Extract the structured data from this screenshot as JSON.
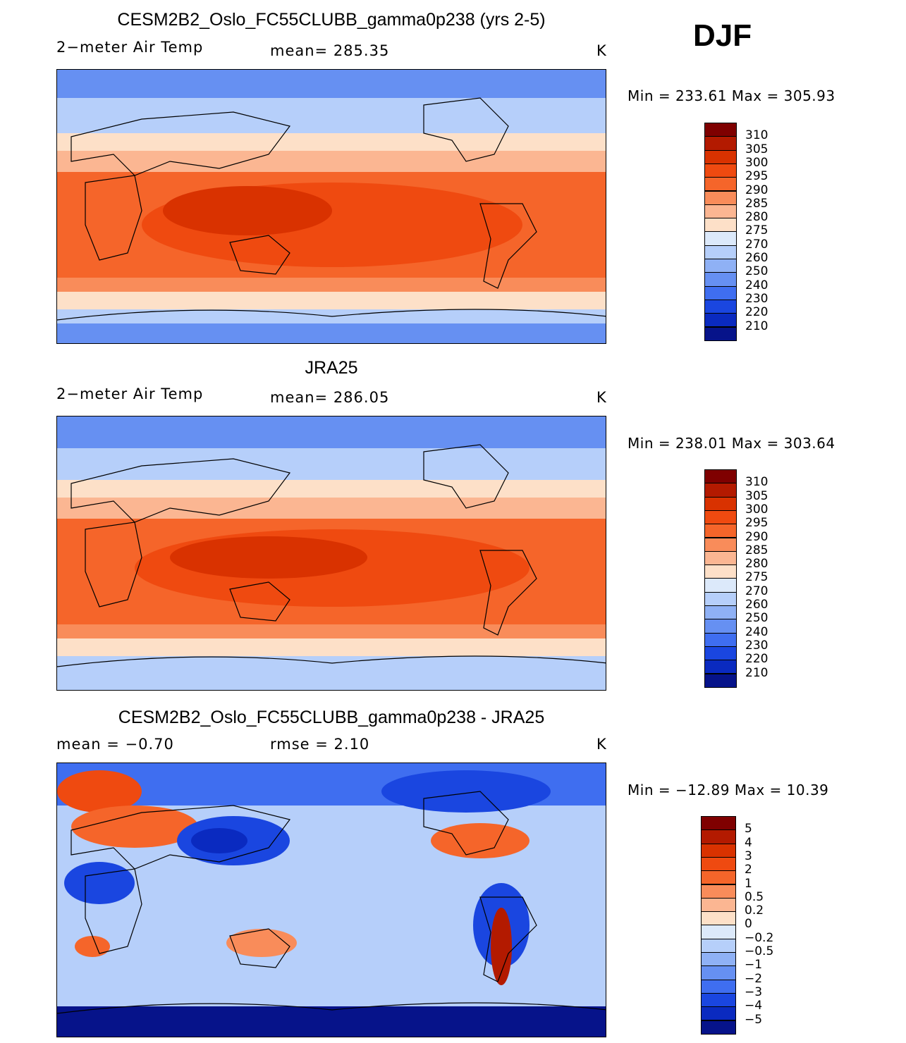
{
  "season": "DJF",
  "panels": [
    {
      "title": "CESM2B2_Oslo_FC55CLUBB_gamma0p238 (yrs 2-5)",
      "left": "2−meter Air Temp",
      "center": "mean=  285.35",
      "units": "K",
      "minmax": "Min  =  233.61   Max  =  305.93",
      "levels": [
        "310",
        "305",
        "300",
        "295",
        "290",
        "285",
        "280",
        "275",
        "270",
        "260",
        "250",
        "240",
        "230",
        "220",
        "210"
      ],
      "colors": [
        "#7f0000",
        "#b31a00",
        "#d93200",
        "#ef4a10",
        "#f5652a",
        "#f98c5a",
        "#fbb692",
        "#fde0c8",
        "#dce9fa",
        "#b6cffa",
        "#8fb1f5",
        "#6690f2",
        "#3f6ef0",
        "#1a46e0",
        "#0a2ac0",
        "#06138a"
      ]
    },
    {
      "title": "JRA25",
      "left": "2−meter Air Temp",
      "center": "mean=  286.05",
      "units": "K",
      "minmax": "Min  =  238.01   Max  =  303.64",
      "levels": [
        "310",
        "305",
        "300",
        "295",
        "290",
        "285",
        "280",
        "275",
        "270",
        "260",
        "250",
        "240",
        "230",
        "220",
        "210"
      ],
      "colors": [
        "#7f0000",
        "#b31a00",
        "#d93200",
        "#ef4a10",
        "#f5652a",
        "#f98c5a",
        "#fbb692",
        "#fde0c8",
        "#dce9fa",
        "#b6cffa",
        "#8fb1f5",
        "#6690f2",
        "#3f6ef0",
        "#1a46e0",
        "#0a2ac0",
        "#06138a"
      ]
    },
    {
      "title": "CESM2B2_Oslo_FC55CLUBB_gamma0p238 - JRA25",
      "left": "mean  =   −0.70",
      "center": "rmse  =     2.10",
      "units": "K",
      "minmax": "Min  =  −12.89   Max  =    10.39",
      "levels": [
        "5",
        "4",
        "3",
        "2",
        "1",
        "0.5",
        "0.2",
        "0",
        "−0.2",
        "−0.5",
        "−1",
        "−2",
        "−3",
        "−4",
        "−5"
      ],
      "colors": [
        "#7f0000",
        "#b31a00",
        "#d93200",
        "#ef4a10",
        "#f5652a",
        "#f98c5a",
        "#fbb692",
        "#fde0c8",
        "#dce9fa",
        "#b6cffa",
        "#8fb1f5",
        "#6690f2",
        "#3f6ef0",
        "#1a46e0",
        "#0a2ac0",
        "#06138a"
      ]
    }
  ]
}
